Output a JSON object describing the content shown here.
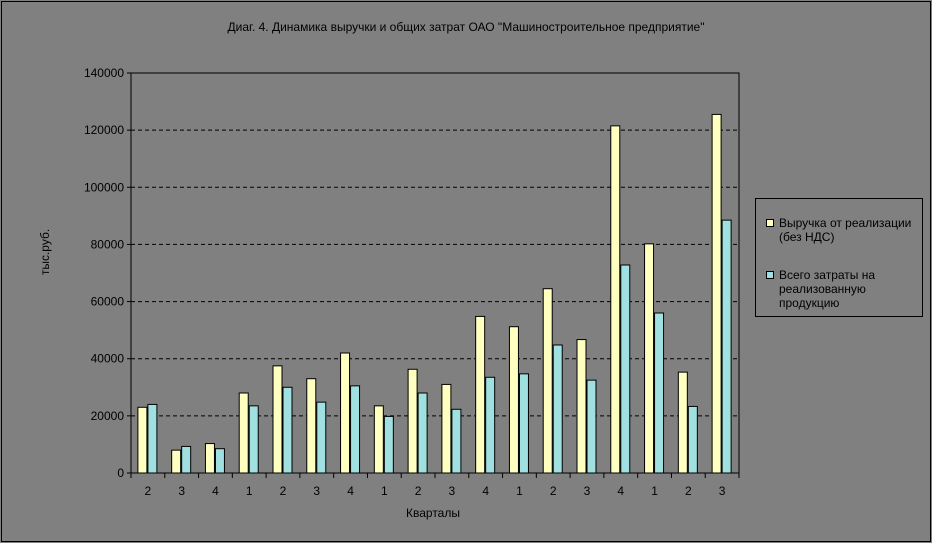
{
  "chart_data": {
    "type": "bar",
    "title": "Диаг. 4. Динамика выручки и общих затрат ОАО \"Машиностроительное предприятие\"",
    "xlabel": "Кварталы",
    "ylabel": "тыс.руб.",
    "ylim": [
      0,
      140000
    ],
    "yticks": [
      "0",
      "20000",
      "40000",
      "60000",
      "80000",
      "100000",
      "120000",
      "140000"
    ],
    "categories": [
      "2",
      "3",
      "4",
      "1",
      "2",
      "3",
      "4",
      "1",
      "2",
      "3",
      "4",
      "1",
      "2",
      "3",
      "4",
      "1",
      "2",
      "3"
    ],
    "series": [
      {
        "name": "Выручка от реализации (без НДС)",
        "color": "#ffffc0",
        "values": [
          23000,
          8000,
          10300,
          28000,
          37500,
          33000,
          42000,
          23500,
          36300,
          31000,
          54800,
          51200,
          64500,
          46700,
          121500,
          80200,
          35300,
          125500
        ]
      },
      {
        "name": "Всего затраты на реализованную продукцию",
        "color": "#a0e0e0",
        "values": [
          24000,
          9300,
          8500,
          23500,
          30000,
          24800,
          30500,
          19800,
          28000,
          22300,
          33500,
          34700,
          44800,
          32500,
          72800,
          56000,
          23300,
          88500
        ]
      }
    ],
    "grid": "horizontal dashed",
    "legend_position": "right"
  },
  "colors": {
    "background": "#808080",
    "plot_area": "#808080",
    "gridline": "#000000"
  }
}
